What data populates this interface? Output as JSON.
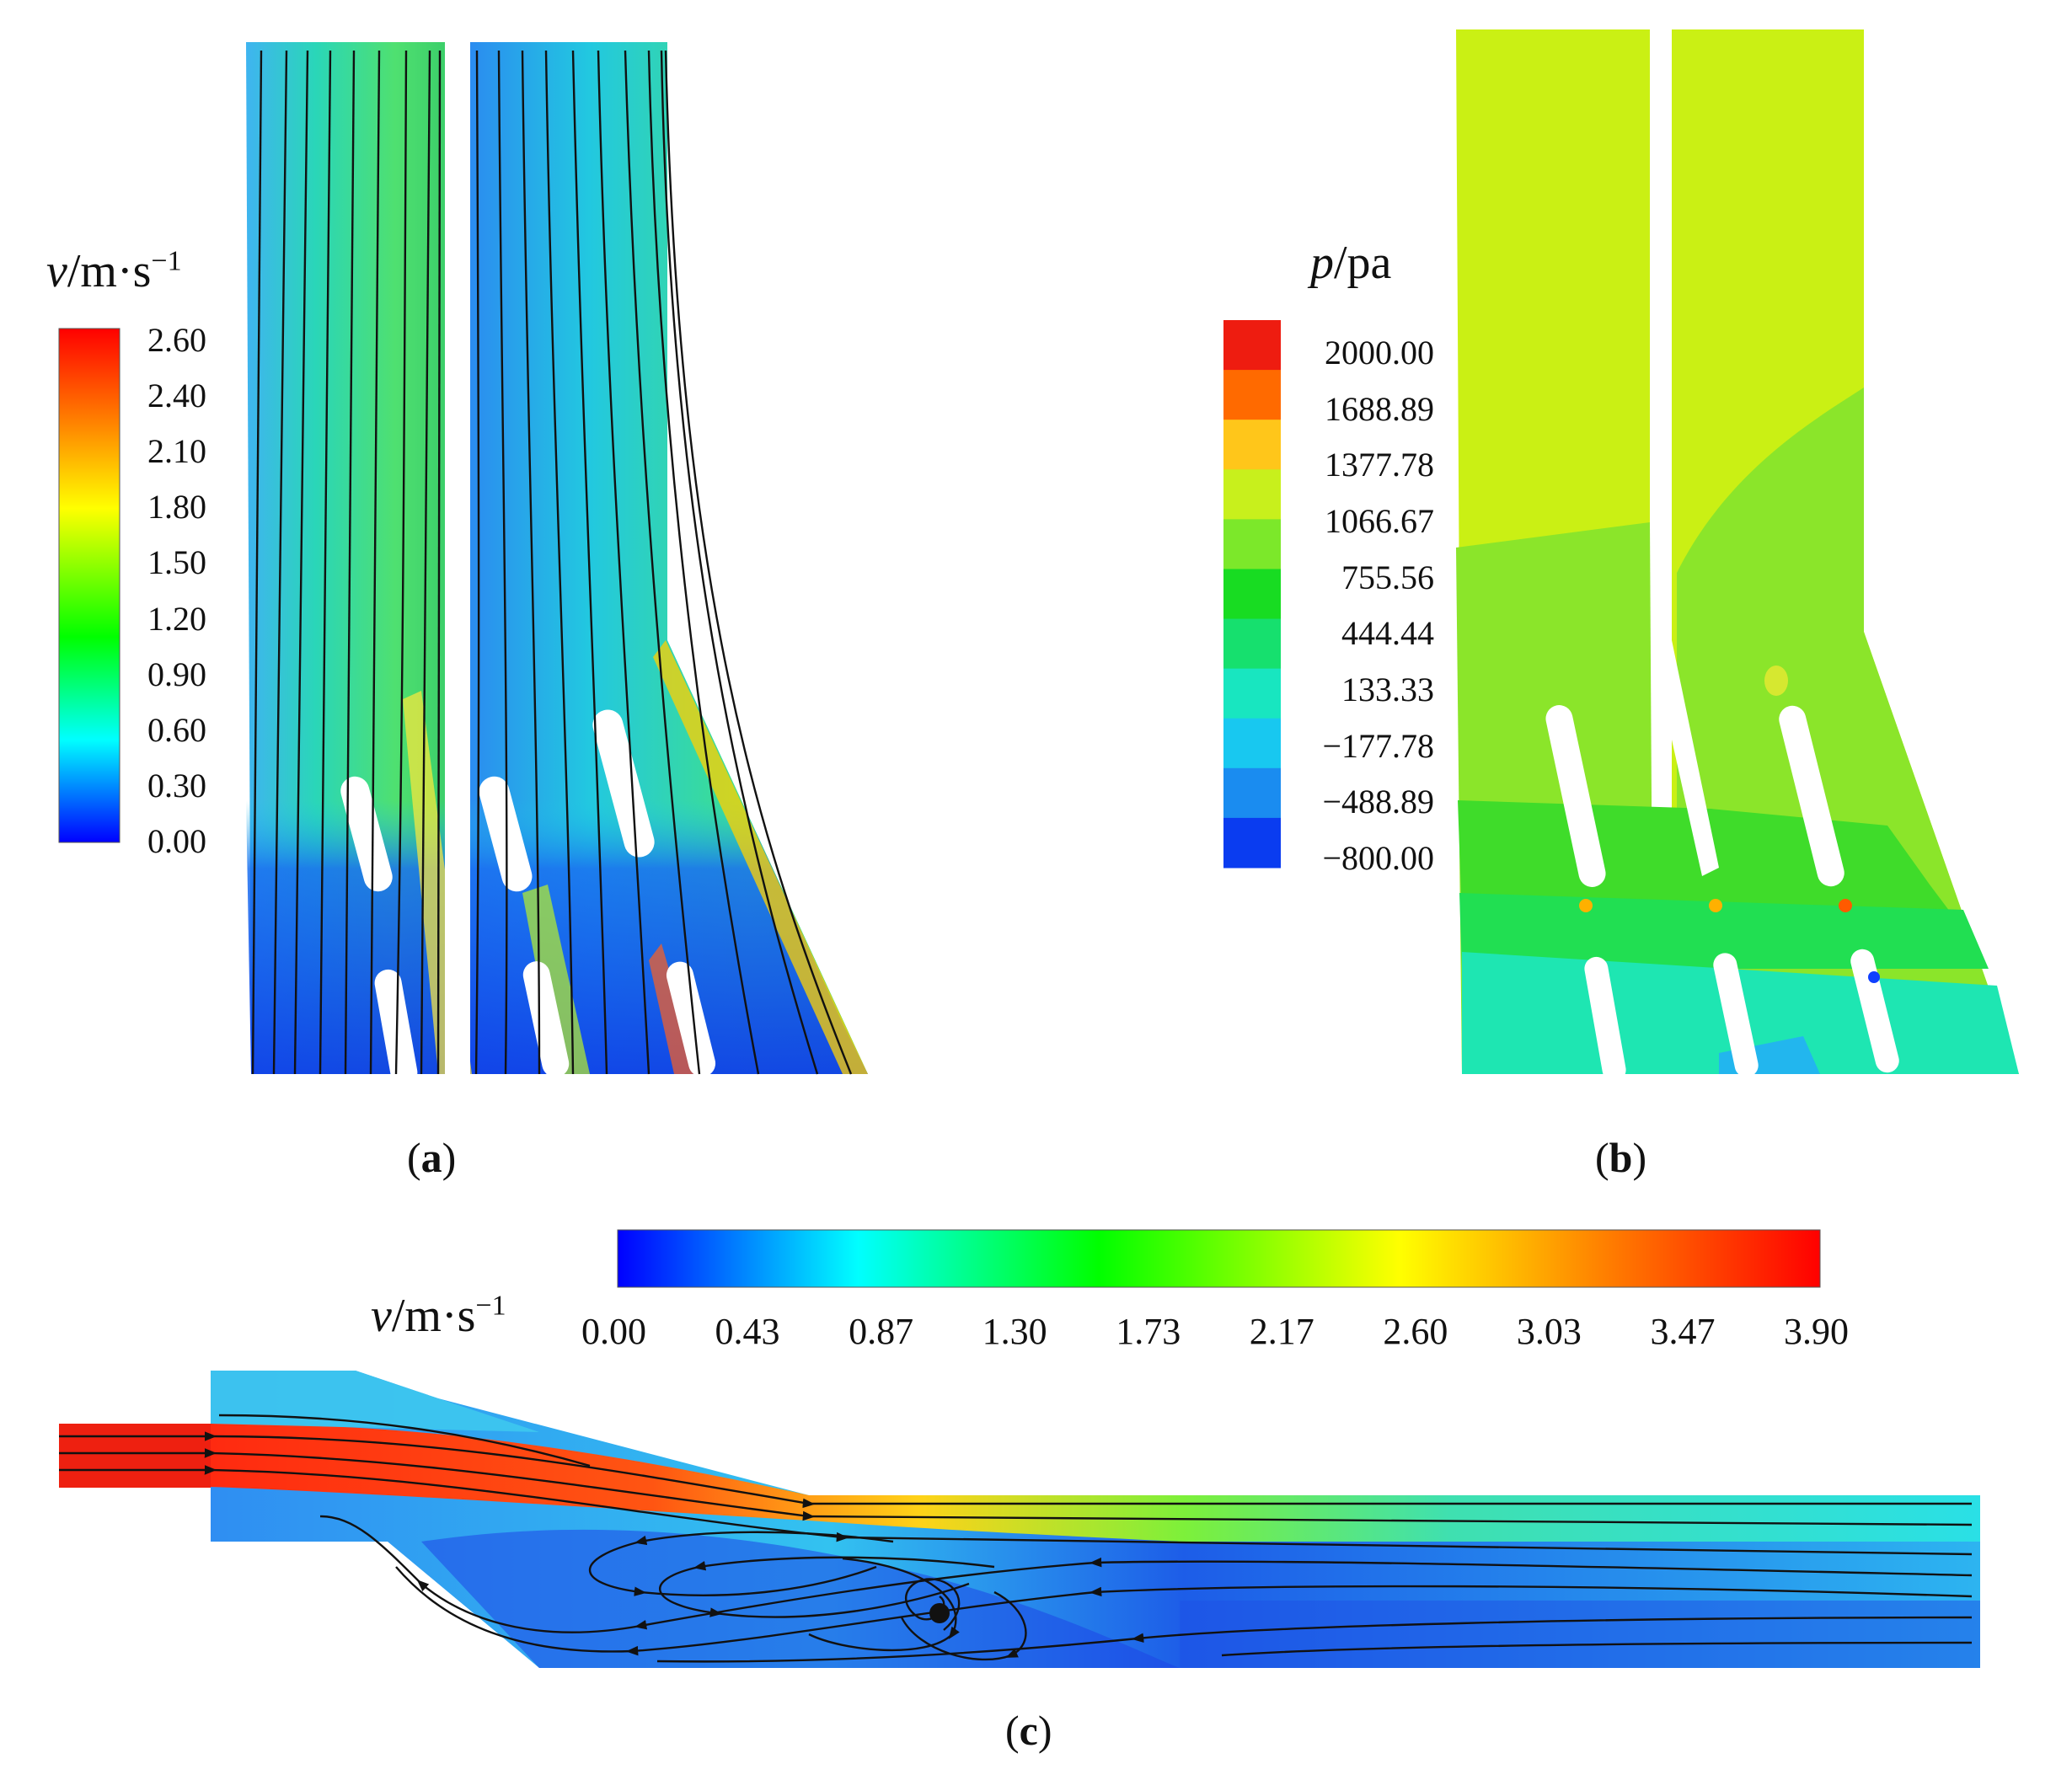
{
  "panel_a": {
    "label": "a",
    "legend_var": "v",
    "legend_unit": "/m·s",
    "legend_exp": "−1",
    "ticks": [
      "2.60",
      "2.40",
      "2.10",
      "1.80",
      "1.50",
      "1.20",
      "0.90",
      "0.60",
      "0.30",
      "0.00"
    ],
    "colormap": [
      "#ff0000",
      "#ff8000",
      "#ffff00",
      "#00ff00",
      "#00ffff",
      "#0000ff"
    ]
  },
  "panel_b": {
    "label": "b",
    "legend_var": "p",
    "legend_unit": "/pa",
    "ticks": [
      "2000.00",
      "1688.89",
      "1377.78",
      "1066.67",
      "755.56",
      "444.44",
      "133.33",
      "−177.78",
      "−488.89",
      "−800.00"
    ],
    "bands": [
      "#ee1c10",
      "#ff6a00",
      "#ffc61a",
      "#c8f01c",
      "#7ce82a",
      "#18dc22",
      "#16e06e",
      "#18e6c0",
      "#18c8f0",
      "#1a8cf0",
      "#0a3cf0"
    ]
  },
  "panel_c": {
    "label": "c",
    "legend_var": "v",
    "legend_unit": "/m·s",
    "legend_exp": "−1",
    "ticks": [
      "0.00",
      "0.43",
      "0.87",
      "1.30",
      "1.73",
      "2.17",
      "2.60",
      "3.03",
      "3.47",
      "3.90"
    ],
    "colormap": [
      "#0000ff",
      "#00ffff",
      "#00ff00",
      "#ffff00",
      "#ff8000",
      "#ff0000"
    ]
  }
}
